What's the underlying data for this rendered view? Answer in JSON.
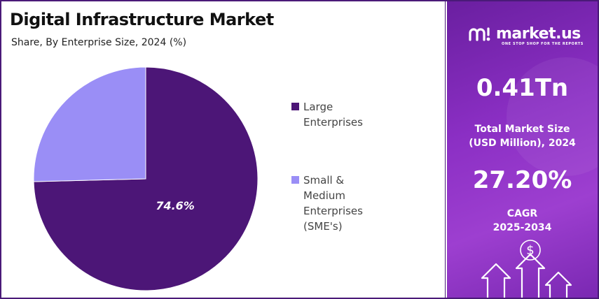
{
  "chart_data": {
    "type": "pie",
    "title": "Digital Infrastructure Market",
    "subtitle": "Share, By Enterprise Size, 2024 (%)",
    "categories": [
      "Large Enterprises",
      "Small & Medium\nEnterprises (SME's)"
    ],
    "values": [
      74.6,
      25.4
    ],
    "colors": [
      "#4c1677",
      "#9a8ef6"
    ],
    "data_labels": [
      "74.6%",
      ""
    ],
    "legend_position": "right"
  },
  "brand": {
    "name": "market.us",
    "tagline": "ONE STOP SHOP FOR THE REPORTS",
    "icon": "market-us-logo-icon"
  },
  "stats": {
    "market_size_value": "0.41Tn",
    "market_size_label": "Total Market Size\n(USD Million), 2024",
    "cagr_value": "27.20%",
    "cagr_label": "CAGR\n2025-2034",
    "dollar_symbol": "$"
  },
  "colors": {
    "panel_purple": "#8b2fc4",
    "frame": "#4a1a78"
  }
}
